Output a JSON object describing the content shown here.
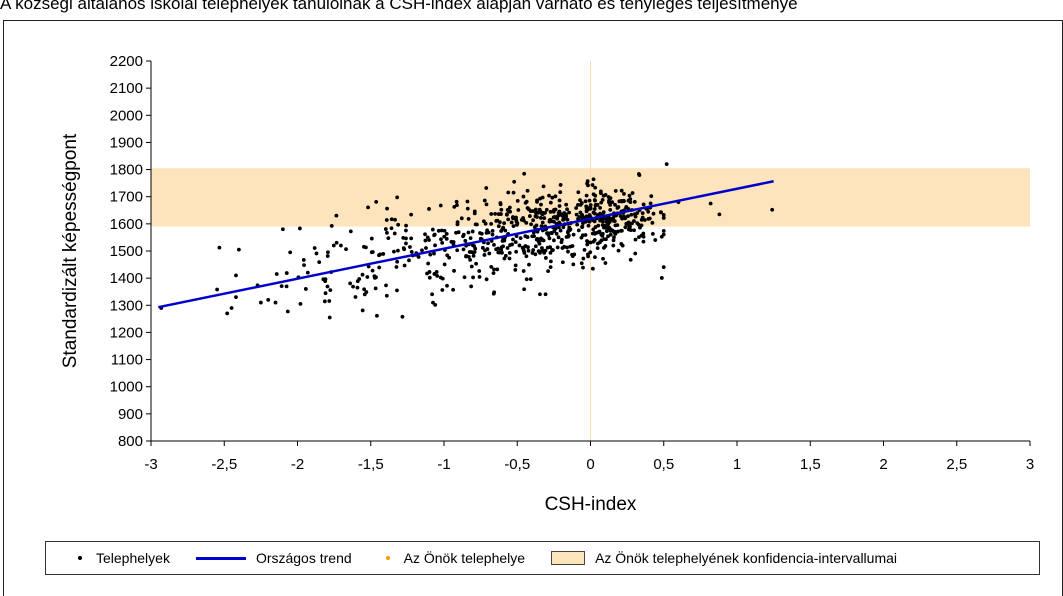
{
  "title": "A községi általános iskolai telephelyek tanulóinak a CSH-index alapján várható és tényleges teljesítménye",
  "chart_data": {
    "type": "scatter",
    "xlabel": "CSH-index",
    "ylabel": "Standardizált képességpont",
    "xlim": [
      -3,
      3
    ],
    "ylim": [
      800,
      2200
    ],
    "x_ticks": [
      "-3",
      "-2,5",
      "-2",
      "-1,5",
      "-1",
      "-0,5",
      "0",
      "0,5",
      "1",
      "1,5",
      "2",
      "2,5",
      "3"
    ],
    "x_tick_values": [
      -3,
      -2.5,
      -2,
      -1.5,
      -1,
      -0.5,
      0,
      0.5,
      1,
      1.5,
      2,
      2.5,
      3
    ],
    "y_ticks": [
      800,
      900,
      1000,
      1100,
      1200,
      1300,
      1400,
      1500,
      1600,
      1700,
      1800,
      1900,
      2000,
      2100,
      2200
    ],
    "grid": false,
    "confidence_band": {
      "y_from": 1590,
      "y_to": 1805
    },
    "own_site_x": 0,
    "trend": {
      "x": [
        -2.95,
        1.25
      ],
      "y": [
        1293,
        1757
      ]
    },
    "scatter_note": "approx. 750 points, generated from cluster description",
    "clusters": [
      {
        "x": -0.3,
        "y": 1580,
        "sx": 0.35,
        "sy": 70,
        "n": 380
      },
      {
        "x": 0.1,
        "y": 1630,
        "sx": 0.2,
        "sy": 50,
        "n": 180
      },
      {
        "x": -1.0,
        "y": 1490,
        "sx": 0.35,
        "sy": 75,
        "n": 130
      },
      {
        "x": -1.7,
        "y": 1420,
        "sx": 0.3,
        "sy": 75,
        "n": 55
      }
    ],
    "extra_points": [
      {
        "x": -2.93,
        "y": 1290
      },
      {
        "x": -2.48,
        "y": 1270
      },
      {
        "x": -2.45,
        "y": 1290
      },
      {
        "x": -2.42,
        "y": 1330
      },
      {
        "x": -2.4,
        "y": 1505
      },
      {
        "x": -2.42,
        "y": 1410
      },
      {
        "x": -2.25,
        "y": 1310
      },
      {
        "x": -2.2,
        "y": 1320
      },
      {
        "x": -2.15,
        "y": 1310
      },
      {
        "x": -2.1,
        "y": 1580
      },
      {
        "x": -2.05,
        "y": 1495
      },
      {
        "x": -1.98,
        "y": 1305
      },
      {
        "x": -1.78,
        "y": 1255
      },
      {
        "x": 0.52,
        "y": 1820
      },
      {
        "x": 0.82,
        "y": 1675
      },
      {
        "x": 0.88,
        "y": 1635
      },
      {
        "x": 1.24,
        "y": 1652
      },
      {
        "x": 0.6,
        "y": 1680
      }
    ],
    "legend": {
      "points": "Telephelyek",
      "trend": "Országos trend",
      "own": "Az Önök telephelye",
      "band": "Az Önök telephelyének konfidencia-intervallumai"
    },
    "colors": {
      "points": "#000000",
      "trend": "#0000cc",
      "own": "#ff9900",
      "band": "#fde4bc"
    }
  }
}
